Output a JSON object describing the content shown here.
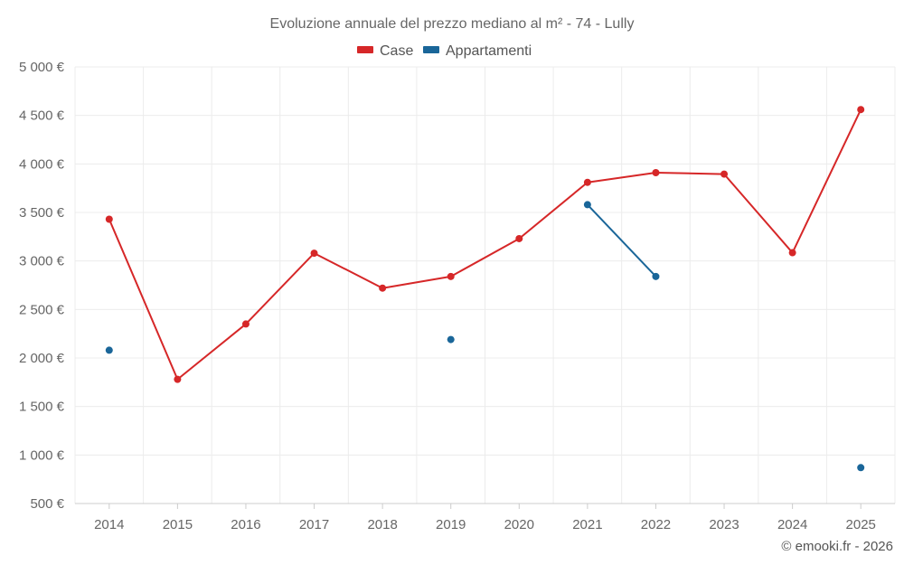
{
  "chart_data": {
    "type": "line",
    "title": "Evoluzione annuale del prezzo mediano al m² - 74 - Lully",
    "x": [
      "2014",
      "2015",
      "2016",
      "2017",
      "2018",
      "2019",
      "2020",
      "2021",
      "2022",
      "2023",
      "2024",
      "2025"
    ],
    "y_ticks": [
      "5 000 €",
      "4 500 €",
      "4 000 €",
      "3 500 €",
      "3 000 €",
      "2 500 €",
      "2 000 €",
      "1 500 €",
      "1 000 €",
      "500 €"
    ],
    "ylim": [
      500,
      5000
    ],
    "series": [
      {
        "name": "Case",
        "color": "#d62728",
        "values": [
          3430,
          1780,
          2350,
          3080,
          2720,
          2840,
          3230,
          3810,
          3910,
          3895,
          3085,
          4560
        ]
      },
      {
        "name": "Appartamenti",
        "color": "#1a6699",
        "values": [
          2080,
          null,
          null,
          null,
          null,
          2190,
          null,
          3580,
          2840,
          null,
          null,
          870
        ]
      }
    ],
    "legend_position": "top-center",
    "grid": true
  },
  "credit": "© emooki.fr - 2026"
}
